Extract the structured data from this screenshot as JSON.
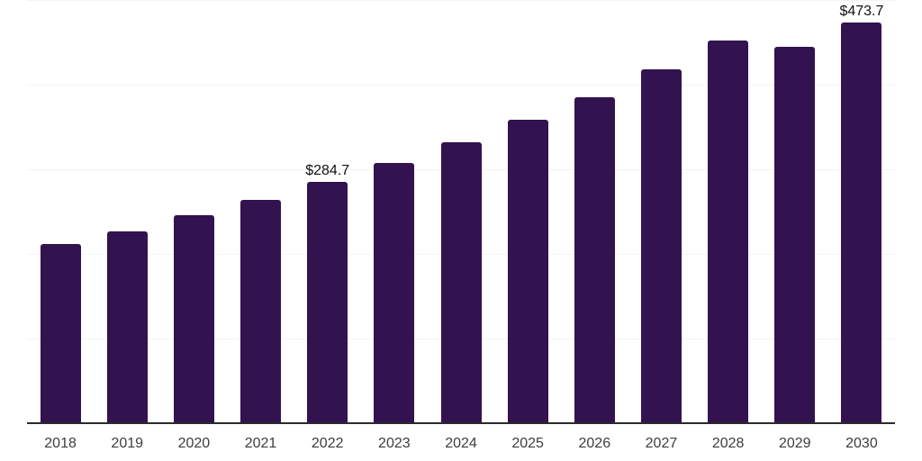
{
  "chart_data": {
    "type": "bar",
    "title": "",
    "xlabel": "",
    "ylabel": "",
    "categories": [
      "2018",
      "2019",
      "2020",
      "2021",
      "2022",
      "2023",
      "2024",
      "2025",
      "2026",
      "2027",
      "2028",
      "2029",
      "2030"
    ],
    "values": [
      211.8,
      226.7,
      245.9,
      264.0,
      284.7,
      307.6,
      332.1,
      358.5,
      385.4,
      418.4,
      452.0,
      444.4,
      473.7
    ],
    "data_labels": [
      "",
      "",
      "",
      "",
      "$284.7",
      "",
      "",
      "",
      "",
      "",
      "",
      "",
      "$473.7"
    ],
    "ylim": [
      0,
      500
    ],
    "gridline_values": [
      100,
      200,
      300,
      400,
      500
    ],
    "grid": "horizontal-faint",
    "legend_position": "none",
    "y_axis_tick_labels_visible": false
  },
  "styles": {
    "bar_color": "#331250",
    "axis_line_color": "#2b2b2b",
    "gridline_color": "#f4f4f4",
    "tick_label_color": "#3d3d3d",
    "data_label_color": "#111111",
    "background_color": "#ffffff"
  }
}
